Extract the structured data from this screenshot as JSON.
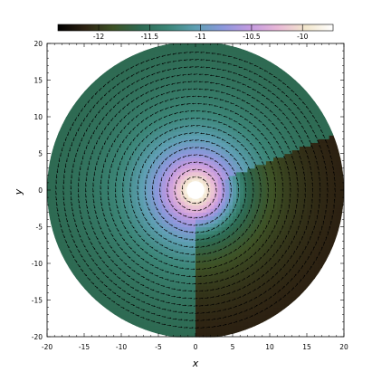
{
  "chart_data": {
    "type": "heatmap",
    "title": "",
    "xlabel": "x",
    "ylabel": "y",
    "xlim": [
      -20,
      20
    ],
    "ylim": [
      -20,
      20
    ],
    "xticks": [
      -20,
      -15,
      -10,
      -5,
      0,
      5,
      10,
      15,
      20
    ],
    "yticks": [
      -20,
      -15,
      -10,
      -5,
      0,
      5,
      10,
      15,
      20
    ],
    "xtick_labels": [
      "-20",
      "-15",
      "-10",
      "-5",
      "0",
      "5",
      "10",
      "15",
      "20"
    ],
    "ytick_labels": [
      "-20",
      "-15",
      "-10",
      "-5",
      "0",
      "5",
      "10",
      "15",
      "20"
    ],
    "colorbar": {
      "placement": "top",
      "range": [
        -12.4,
        -9.7
      ],
      "ticks": [
        -12,
        -11.5,
        -11,
        -10.5,
        -10
      ],
      "tick_labels": [
        "-12",
        "-11.5",
        "-11",
        "-10.5",
        "-10"
      ],
      "colors": [
        "#000000",
        "#2d2212",
        "#3e5226",
        "#2e6a52",
        "#3c8678",
        "#5e9fb2",
        "#8c98dc",
        "#c49ae0",
        "#e8b8d6",
        "#f2e6cc",
        "#ffffff"
      ]
    },
    "field": {
      "disk_radius": 20,
      "inner_hole_radius": 1.2,
      "quantity_range": [
        -12.4,
        -9.7
      ],
      "center_value": -9.85,
      "outer_value": -11.65,
      "shadow_sector_deg": [
        -90,
        22
      ],
      "shadow_value_offset": -0.55
    },
    "vectors": {
      "pattern": "spiral",
      "rotation": "counter-clockwise",
      "color": "#000000",
      "ring_spacing": 1.0
    }
  }
}
